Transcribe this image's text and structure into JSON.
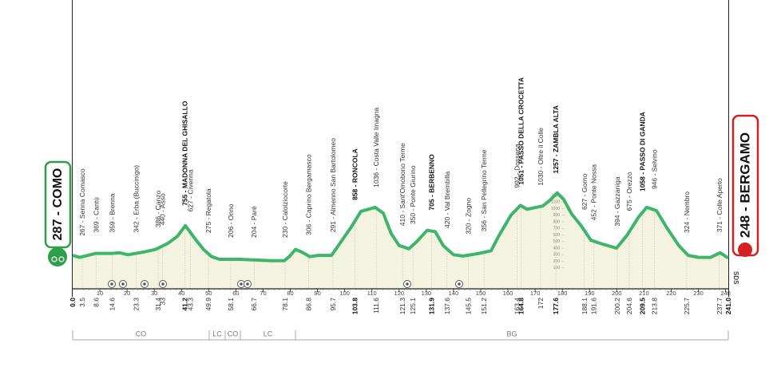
{
  "chart_data": {
    "type": "area",
    "start": {
      "label": "287 - COMO",
      "km": {
        "value": 0,
        "label": "0.0"
      }
    },
    "finish": {
      "label": "248 - BERGAMO",
      "km": {
        "value": 241,
        "label": "241.0"
      }
    },
    "finish_note": "SDS",
    "color": "#3db56b",
    "fill": "#f4f3df",
    "xlim": [
      0,
      241
    ],
    "ylim": [
      0,
      1400
    ],
    "xticks": [
      10,
      20,
      30,
      40,
      50,
      60,
      70,
      80,
      90,
      100,
      110,
      120,
      130,
      140,
      150,
      160,
      170,
      180,
      190,
      200,
      210,
      220,
      230,
      240
    ],
    "yticks": [
      100,
      200,
      300,
      400,
      500,
      600,
      700,
      800,
      900,
      1000,
      1100,
      1200
    ],
    "profile": {
      "km": [
        0,
        2.6,
        5.6,
        8.5,
        14.4,
        17.3,
        20.3,
        26.1,
        30.5,
        34.9,
        38.5,
        41.4,
        43.1,
        45.2,
        48.1,
        51.1,
        54.0,
        58.4,
        61.3,
        67.2,
        73.1,
        77.8,
        79.6,
        81.9,
        84.2,
        87.2,
        90.1,
        95.1,
        98.0,
        102.4,
        106.0,
        111.2,
        114.2,
        117.1,
        120.0,
        123.6,
        126.5,
        130.3,
        133.3,
        136.2,
        140.0,
        143.5,
        149.4,
        153.8,
        156.7,
        161.1,
        164.6,
        167.0,
        169.3,
        172.8,
        175.8,
        178.1,
        180.5,
        183.4,
        186.9,
        190.5,
        194.9,
        199.9,
        203.7,
        208.0,
        211.0,
        214.6,
        218.4,
        222.8,
        226.3,
        230.1,
        234.5,
        238.0,
        241.0
      ],
      "elevation": [
        290,
        260,
        290,
        320,
        320,
        330,
        300,
        340,
        380,
        470,
        580,
        740,
        650,
        530,
        380,
        270,
        230,
        230,
        230,
        220,
        210,
        210,
        270,
        380,
        340,
        270,
        290,
        290,
        460,
        720,
        960,
        1020,
        930,
        620,
        440,
        390,
        500,
        670,
        650,
        440,
        300,
        280,
        320,
        360,
        590,
        900,
        1050,
        990,
        1010,
        1040,
        1140,
        1240,
        1140,
        920,
        740,
        520,
        460,
        400,
        590,
        870,
        1020,
        970,
        710,
        440,
        290,
        260,
        260,
        330,
        250
      ]
    },
    "waypoints": [
      {
        "label": "267 - Senna Comasco",
        "km": 3.5
      },
      {
        "label": "369 - Cantù",
        "km": 8.6
      },
      {
        "label": "359 - Brenna",
        "km": 14.6
      },
      {
        "label": "342 - Erba (Buccinigo)",
        "km": 23.3
      },
      {
        "label": "386 - Canzo",
        "km": 31.4
      },
      {
        "label": "440 - Asso",
        "km": 33.0
      },
      {
        "label": "755 - MADONNA DEL GHISALLO",
        "km": 41.2,
        "bold": true
      },
      {
        "label": "627 - Civenna",
        "km": 43.3
      },
      {
        "label": "275 - Regatola",
        "km": 49.9
      },
      {
        "label": "206 - Onno",
        "km": 58.1
      },
      {
        "label": "204 - Parè",
        "km": 66.7
      },
      {
        "label": "230 - Calolziocorte",
        "km": 78.1
      },
      {
        "label": "306 - Caprino Bergamasco",
        "km": 86.8
      },
      {
        "label": "291 - Almenno San Bartolomeo",
        "km": 95.7
      },
      {
        "label": "858 - RONCOLA",
        "km": 103.8,
        "bold": true
      },
      {
        "label": "1036 - Costa Valle Imagna",
        "km": 111.6
      },
      {
        "label": "410 - Sant'Omobono Terme",
        "km": 121.3
      },
      {
        "label": "350 - Ponte Giurino",
        "km": 125.1
      },
      {
        "label": "705 - BERBENNO",
        "km": 131.9,
        "bold": true
      },
      {
        "label": "420 - Val Brembilla",
        "km": 137.6
      },
      {
        "label": "320 - Zogno",
        "km": 145.5
      },
      {
        "label": "356 - San Pellegrino Terme",
        "km": 151.2
      },
      {
        "label": "992 - Dossena",
        "km": 163.4
      },
      {
        "label": "1051 - PASSO DELLA CROCETTA",
        "km": 164.8,
        "bold": true
      },
      {
        "label": "1030 - Oltre il Colle",
        "km": 172.0
      },
      {
        "label": "1257 - ZAMBLA ALTA",
        "km": 177.6,
        "bold": true
      },
      {
        "label": "627 - Gorno",
        "km": 188.1
      },
      {
        "label": "452 - Ponte Nossa",
        "km": 191.6
      },
      {
        "label": "394 - Gazzaniga",
        "km": 200.2
      },
      {
        "label": "675 - Orezzo",
        "km": 204.6
      },
      {
        "label": "1058 - PASSO DI GANDA",
        "km": 209.5,
        "bold": true
      },
      {
        "label": "946 - Selvino",
        "km": 213.8
      },
      {
        "label": "324 - Nembro",
        "km": 225.7
      },
      {
        "label": "371 - Colle Aperto",
        "km": 237.7
      }
    ],
    "regions": [
      "CO",
      "LC",
      "CO",
      "LC",
      "BG"
    ]
  }
}
